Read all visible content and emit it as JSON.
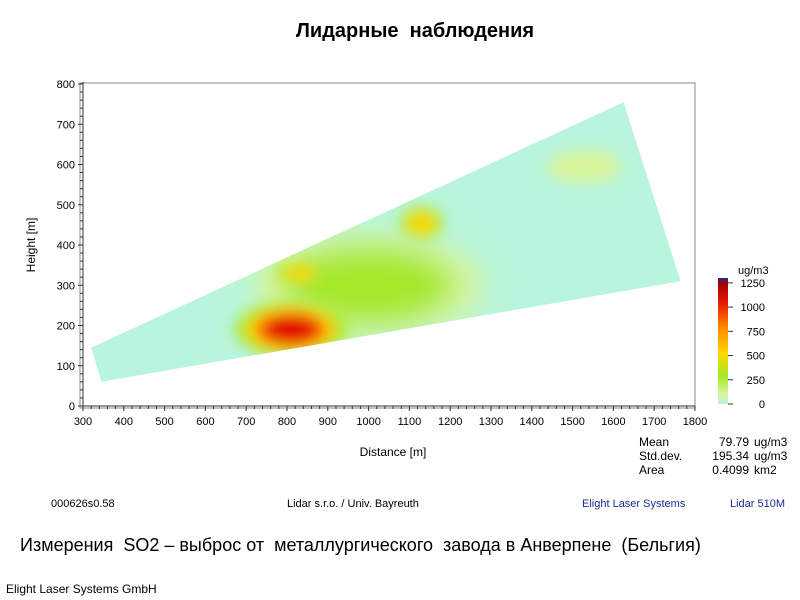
{
  "slide": {
    "title": "Лидарные  наблюдения",
    "caption": "Измерения  SO2 – выброс от  металлургического  завода в Анверпене  (Бельгия)",
    "company": "Elight Laser Systems GmbH"
  },
  "footer": {
    "file_id": "000626s0.58",
    "credit": "Lidar s.r.o. / Univ. Bayreuth",
    "brand": "Elight Laser Systems",
    "model": "Lidar 510M"
  },
  "stats": [
    {
      "label": "Mean",
      "value": "79.79",
      "unit": "ug/m3"
    },
    {
      "label": "Std.dev.",
      "value": "195.34",
      "unit": "ug/m3"
    },
    {
      "label": "Area",
      "value": "0.4099",
      "unit": "km2"
    }
  ],
  "chart_data": {
    "type": "heatmap",
    "title": "",
    "xlabel": "Distance [m]",
    "ylabel": "Height [m]",
    "xlim": [
      300,
      1800
    ],
    "ylim": [
      0,
      800
    ],
    "xticks": [
      300,
      400,
      500,
      600,
      700,
      800,
      900,
      1000,
      1100,
      1200,
      1300,
      1400,
      1500,
      1600,
      1700,
      1800
    ],
    "yticks": [
      0,
      100,
      200,
      300,
      400,
      500,
      600,
      700,
      800
    ],
    "scan_sector_outline": [
      [
        320,
        145
      ],
      [
        1625,
        755
      ],
      [
        1765,
        310
      ],
      [
        345,
        60
      ]
    ],
    "background_level": 50,
    "hotspots": [
      {
        "x": 810,
        "y": 190,
        "rx": 110,
        "ry": 55,
        "level": 1150
      },
      {
        "x": 830,
        "y": 330,
        "rx": 45,
        "ry": 20,
        "level": 500
      },
      {
        "x": 1130,
        "y": 455,
        "rx": 40,
        "ry": 30,
        "level": 500
      },
      {
        "x": 1000,
        "y": 300,
        "rx": 280,
        "ry": 130,
        "level": 250
      },
      {
        "x": 1530,
        "y": 595,
        "rx": 90,
        "ry": 40,
        "level": 150
      }
    ],
    "colorbar": {
      "unit": "ug/m3",
      "min": 0,
      "max": 1300,
      "ticks": [
        0,
        250,
        500,
        750,
        1000,
        1250
      ],
      "tick_labels": [
        "0",
        "250",
        "500",
        "750",
        "1000",
        "1250"
      ]
    },
    "colors": {
      "background": "#b8f5dc",
      "low": "#d9f59c",
      "mid": "#a6e82a",
      "warm": "#ffd700",
      "hot": "#ff6600",
      "max": "#e00000",
      "top": "#1a2a9a"
    }
  }
}
